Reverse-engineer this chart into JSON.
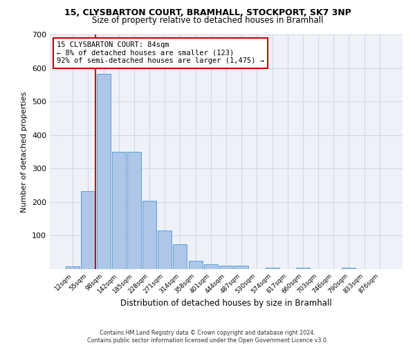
{
  "title1": "15, CLYSBARTON COURT, BRAMHALL, STOCKPORT, SK7 3NP",
  "title2": "Size of property relative to detached houses in Bramhall",
  "xlabel": "Distribution of detached houses by size in Bramhall",
  "ylabel": "Number of detached properties",
  "bin_labels": [
    "12sqm",
    "55sqm",
    "98sqm",
    "142sqm",
    "185sqm",
    "228sqm",
    "271sqm",
    "314sqm",
    "358sqm",
    "401sqm",
    "444sqm",
    "487sqm",
    "530sqm",
    "574sqm",
    "617sqm",
    "660sqm",
    "703sqm",
    "746sqm",
    "790sqm",
    "833sqm",
    "876sqm"
  ],
  "bar_heights": [
    8,
    232,
    583,
    350,
    350,
    203,
    115,
    75,
    25,
    15,
    10,
    10,
    0,
    5,
    0,
    5,
    0,
    0,
    5,
    0,
    0
  ],
  "bar_color": "#aec6e8",
  "bar_edge_color": "#5a9fd4",
  "grid_color": "#d0d8e8",
  "background_color": "#eef2f8",
  "red_line_x": 1.5,
  "annotation_text": "15 CLYSBARTON COURT: 84sqm\n← 8% of detached houses are smaller (123)\n92% of semi-detached houses are larger (1,475) →",
  "annotation_box_color": "#ffffff",
  "annotation_border_color": "#cc0000",
  "ylim": [
    0,
    700
  ],
  "yticks": [
    0,
    100,
    200,
    300,
    400,
    500,
    600,
    700
  ],
  "footer1": "Contains HM Land Registry data © Crown copyright and database right 2024.",
  "footer2": "Contains public sector information licensed under the Open Government Licence v3.0."
}
